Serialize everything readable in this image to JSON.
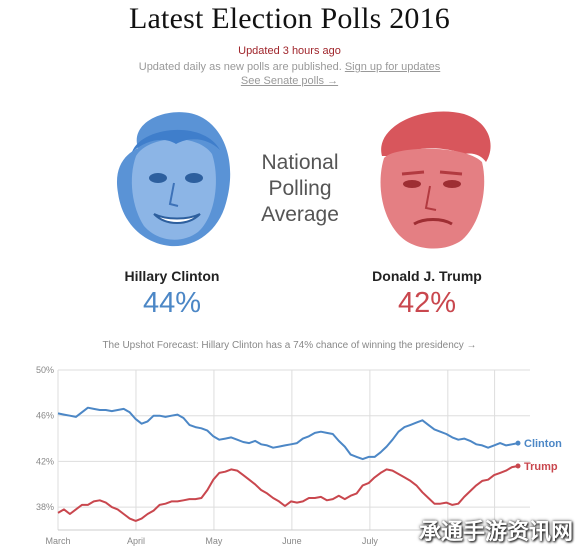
{
  "header": {
    "title": "Latest Election Polls 2016",
    "updated": "Updated 3 hours ago",
    "sub_text": "Updated daily as new polls are published.",
    "signup_link": "Sign up for updates",
    "senate_link": "See Senate polls →"
  },
  "center_label": [
    "National",
    "Polling",
    "Average"
  ],
  "candidates": [
    {
      "name": "Hillary Clinton",
      "pct": "44%",
      "color": "#4c87c6"
    },
    {
      "name": "Donald J. Trump",
      "pct": "42%",
      "color": "#c9474e"
    }
  ],
  "forecast_text": "The Upshot Forecast: Hillary Clinton has a 74% chance of winning the presidency →",
  "watermark": "承通手游资讯网",
  "chart_data": {
    "type": "line",
    "x_ticks": [
      "March",
      "April",
      "May",
      "June",
      "July"
    ],
    "y_ticks": [
      "50%",
      "46%",
      "42%",
      "38%"
    ],
    "ylim": [
      36,
      50
    ],
    "grid": true,
    "series": [
      {
        "name": "Clinton",
        "color": "#4c87c6",
        "values": [
          46.2,
          46.1,
          46,
          45.9,
          46.3,
          46.7,
          46.6,
          46.5,
          46.5,
          46.4,
          46.5,
          46.6,
          46.3,
          45.7,
          45.3,
          45.5,
          46,
          46,
          45.9,
          46,
          46.1,
          45.8,
          45.2,
          45,
          44.9,
          44.7,
          44.2,
          43.9,
          44,
          44.1,
          43.9,
          43.7,
          43.6,
          43.8,
          43.5,
          43.4,
          43.2,
          43.3,
          43.4,
          43.5,
          43.6,
          44,
          44.2,
          44.5,
          44.6,
          44.5,
          44.4,
          43.8,
          43.3,
          42.6,
          42.4,
          42.2,
          42.4,
          42.4,
          42.8,
          43.3,
          43.9,
          44.6,
          45,
          45.2,
          45.4,
          45.6,
          45.2,
          44.8,
          44.6,
          44.4,
          44.1,
          43.9,
          44,
          43.8,
          43.5,
          43.4,
          43.2,
          43.4,
          43.6,
          43.4,
          43.5,
          43.6
        ]
      },
      {
        "name": "Trump",
        "color": "#c9474e",
        "values": [
          37.5,
          37.8,
          37.4,
          37.8,
          38.2,
          38.2,
          38.5,
          38.6,
          38.4,
          38,
          37.8,
          37.4,
          37,
          36.8,
          37,
          37.4,
          37.7,
          38.2,
          38.3,
          38.5,
          38.5,
          38.6,
          38.7,
          38.7,
          38.8,
          39.5,
          40.4,
          41,
          41.1,
          41.3,
          41.2,
          40.8,
          40.4,
          40,
          39.5,
          39.2,
          38.8,
          38.5,
          38.1,
          38.5,
          38.4,
          38.5,
          38.8,
          38.8,
          38.9,
          38.6,
          38.7,
          39,
          38.7,
          39,
          39.2,
          39.9,
          40.1,
          40.6,
          41,
          41.3,
          41.2,
          40.9,
          40.6,
          40.3,
          39.9,
          39.3,
          38.8,
          38.3,
          38.3,
          38.4,
          38.2,
          38.3,
          38.9,
          39.4,
          39.9,
          40.3,
          40.4,
          40.8,
          41,
          41.2,
          41.5,
          41.6
        ]
      }
    ]
  }
}
